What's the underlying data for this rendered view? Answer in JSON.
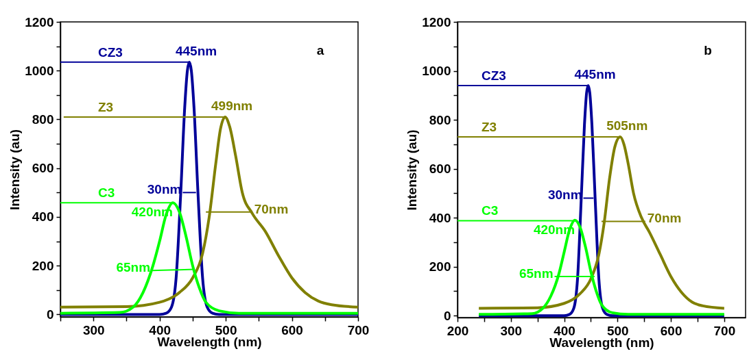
{
  "chart_data": [
    {
      "type": "line",
      "xlabel": "Wavelength (nm)",
      "ylabel": "Intensity (au)",
      "annotations": [
        "a",
        {
          "text": "445nm",
          "x": 445,
          "y": 1035
        },
        {
          "text": "499nm",
          "x": 499,
          "y": 810
        },
        {
          "text": "420nm",
          "x": 420,
          "y": 458
        },
        {
          "text": "30nm",
          "x": 435,
          "y": 500
        },
        {
          "text": "70nm",
          "x": 540,
          "y": 420
        },
        {
          "text": "65nm",
          "x": 388,
          "y": 180
        }
      ],
      "xlim": [
        250,
        700
      ],
      "ylim": [
        -10,
        1200
      ],
      "xticks": [
        {
          "value": 250,
          "label": null
        },
        300,
        {
          "value": 350,
          "label": null
        },
        400,
        {
          "value": 450,
          "label": null
        },
        500,
        {
          "value": 550,
          "label": null
        },
        600,
        {
          "value": 650,
          "label": null
        },
        700
      ],
      "yticks": [
        0,
        {
          "value": 100,
          "label": null
        },
        200,
        {
          "value": 300,
          "label": null
        },
        400,
        {
          "value": 500,
          "label": null
        },
        600,
        {
          "value": 700,
          "label": null
        },
        800,
        {
          "value": 900,
          "label": null
        },
        1000,
        {
          "value": 1100,
          "label": null
        },
        1200
      ],
      "grid": false,
      "legend": false,
      "series": [
        {
          "name": "CZ3",
          "color": "#000099",
          "x": [
            250,
            400,
            410,
            418,
            425,
            432,
            438,
            442,
            445,
            448,
            452,
            458,
            465,
            472,
            480,
            490,
            700
          ],
          "values": [
            0,
            0,
            5,
            30,
            150,
            500,
            850,
            1000,
            1035,
            1000,
            850,
            500,
            150,
            30,
            5,
            0,
            0
          ]
        },
        {
          "name": "Z3",
          "color": "#808000",
          "x": [
            250,
            350,
            400,
            430,
            450,
            465,
            475,
            485,
            492,
            499,
            506,
            515,
            525,
            540,
            560,
            580,
            600,
            620,
            640,
            660,
            700
          ],
          "values": [
            30,
            32,
            50,
            90,
            150,
            250,
            400,
            620,
            760,
            810,
            770,
            650,
            500,
            415,
            340,
            240,
            150,
            90,
            55,
            40,
            30
          ]
        },
        {
          "name": "C3",
          "color": "#00ff00",
          "x": [
            250,
            340,
            360,
            375,
            390,
            400,
            410,
            420,
            430,
            440,
            450,
            460,
            470,
            490,
            520,
            700
          ],
          "values": [
            5,
            8,
            30,
            90,
            200,
            300,
            410,
            458,
            420,
            320,
            200,
            110,
            50,
            15,
            5,
            5
          ]
        },
        {
          "type": "line",
          "color": "#000099",
          "x": [
            250,
            445
          ],
          "values": [
            1035,
            1035
          ]
        },
        {
          "type": "line",
          "color": "#808000",
          "x": [
            255,
            499
          ],
          "values": [
            810,
            810
          ]
        },
        {
          "type": "line",
          "color": "#00ff00",
          "x": [
            250,
            420
          ],
          "values": [
            458,
            458
          ]
        },
        {
          "type": "line",
          "color": "#000099",
          "x": [
            435,
            455
          ],
          "values": [
            500,
            500
          ]
        },
        {
          "type": "line",
          "color": "#808000",
          "x": [
            470,
            540
          ],
          "values": [
            420,
            420
          ]
        },
        {
          "type": "line",
          "color": "#00ff00",
          "x": [
            388,
            453
          ],
          "values": [
            180,
            185
          ]
        }
      ]
    },
    {
      "type": "line",
      "xlabel": "Wavelength (nm)",
      "ylabel": "Intensity (au)",
      "annotations": [
        "b",
        {
          "text": "445nm",
          "x": 445,
          "y": 940
        },
        {
          "text": "505nm",
          "x": 505,
          "y": 730
        },
        {
          "text": "420nm",
          "x": 420,
          "y": 390
        },
        {
          "text": "30nm",
          "x": 436,
          "y": 480
        },
        {
          "text": "70nm",
          "x": 552,
          "y": 385
        },
        {
          "text": "65nm",
          "x": 382,
          "y": 160
        }
      ],
      "xlim": [
        200,
        740
      ],
      "ylim": [
        -8,
        1200
      ],
      "xticks": [
        200,
        {
          "value": 250,
          "label": null
        },
        300,
        {
          "value": 350,
          "label": null
        },
        400,
        {
          "value": 450,
          "label": null
        },
        500,
        {
          "value": 550,
          "label": null
        },
        600,
        {
          "value": 650,
          "label": null
        },
        700
      ],
      "yticks": [
        0,
        {
          "value": 100,
          "label": null
        },
        200,
        {
          "value": 300,
          "label": null
        },
        400,
        {
          "value": 500,
          "label": null
        },
        600,
        {
          "value": 700,
          "label": null
        },
        800,
        {
          "value": 900,
          "label": null
        },
        1000,
        {
          "value": 1100,
          "label": null
        },
        1200
      ],
      "grid": false,
      "legend": false,
      "series": [
        {
          "name": "CZ3",
          "color": "#000099",
          "x": [
            240,
            400,
            410,
            418,
            425,
            432,
            438,
            442,
            445,
            448,
            452,
            458,
            465,
            472,
            480,
            490,
            700
          ],
          "values": [
            0,
            0,
            5,
            30,
            150,
            480,
            780,
            910,
            940,
            910,
            780,
            480,
            150,
            30,
            5,
            0,
            0
          ]
        },
        {
          "name": "Z3",
          "color": "#808000",
          "x": [
            240,
            350,
            400,
            430,
            450,
            465,
            475,
            485,
            495,
            505,
            512,
            520,
            530,
            545,
            560,
            580,
            600,
            620,
            640,
            660,
            700
          ],
          "values": [
            30,
            32,
            50,
            90,
            150,
            250,
            380,
            560,
            690,
            730,
            700,
            620,
            500,
            400,
            340,
            250,
            160,
            95,
            55,
            40,
            30
          ]
        },
        {
          "name": "C3",
          "color": "#00ff00",
          "x": [
            240,
            340,
            360,
            375,
            390,
            400,
            410,
            420,
            430,
            440,
            450,
            460,
            470,
            490,
            520,
            700
          ],
          "values": [
            5,
            8,
            30,
            80,
            170,
            260,
            350,
            390,
            360,
            280,
            180,
            100,
            45,
            12,
            5,
            5
          ]
        },
        {
          "type": "line",
          "color": "#000099",
          "x": [
            200,
            445
          ],
          "values": [
            940,
            940
          ]
        },
        {
          "type": "line",
          "color": "#808000",
          "x": [
            200,
            505
          ],
          "values": [
            730,
            730
          ]
        },
        {
          "type": "line",
          "color": "#00ff00",
          "x": [
            200,
            420
          ],
          "values": [
            388,
            388
          ]
        },
        {
          "type": "line",
          "color": "#000099",
          "x": [
            436,
            455
          ],
          "values": [
            480,
            480
          ]
        },
        {
          "type": "line",
          "color": "#808000",
          "x": [
            470,
            552
          ],
          "values": [
            385,
            385
          ]
        },
        {
          "type": "line",
          "color": "#00ff00",
          "x": [
            382,
            457
          ],
          "values": [
            160,
            160
          ]
        }
      ]
    }
  ]
}
